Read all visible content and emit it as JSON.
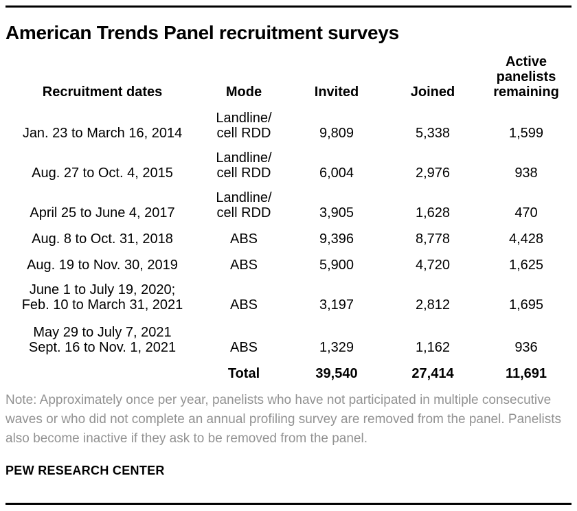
{
  "title": "American Trends Panel recruitment surveys",
  "table": {
    "headers": {
      "dates": "Recruitment dates",
      "mode": "Mode",
      "invited": "Invited",
      "joined": "Joined",
      "active_lines": [
        "Active",
        "panelists",
        "remaining"
      ]
    },
    "rows": [
      {
        "dates": [
          "Jan. 23 to March 16, 2014"
        ],
        "mode": [
          "Landline/",
          "cell RDD"
        ],
        "invited": "9,809",
        "joined": "5,338",
        "active": "1,599"
      },
      {
        "dates": [
          "Aug. 27 to Oct. 4, 2015"
        ],
        "mode": [
          "Landline/",
          "cell RDD"
        ],
        "invited": "6,004",
        "joined": "2,976",
        "active": "938"
      },
      {
        "dates": [
          "April 25 to June 4, 2017"
        ],
        "mode": [
          "Landline/",
          "cell RDD"
        ],
        "invited": "3,905",
        "joined": "1,628",
        "active": "470"
      },
      {
        "dates": [
          "Aug. 8 to Oct. 31, 2018"
        ],
        "mode": [
          "ABS"
        ],
        "invited": "9,396",
        "joined": "8,778",
        "active": "4,428"
      },
      {
        "dates": [
          "Aug. 19 to Nov. 30, 2019"
        ],
        "mode": [
          "ABS"
        ],
        "invited": "5,900",
        "joined": "4,720",
        "active": "1,625"
      },
      {
        "dates": [
          "June 1 to July 19, 2020;",
          "Feb. 10 to March 31, 2021"
        ],
        "mode": [
          "ABS"
        ],
        "invited": "3,197",
        "joined": "2,812",
        "active": "1,695"
      },
      {
        "dates": [
          "May 29 to July 7, 2021",
          "Sept. 16 to Nov. 1, 2021"
        ],
        "mode": [
          "ABS"
        ],
        "invited": "1,329",
        "joined": "1,162",
        "active": "936"
      }
    ],
    "total": {
      "label": "Total",
      "invited": "39,540",
      "joined": "27,414",
      "active": "11,691"
    }
  },
  "note": "Note: Approximately once per year, panelists who have not participated in multiple consecutive waves or who did not complete an annual profiling survey are removed from the panel. Panelists also become inactive if they ask to be removed from the panel.",
  "source": "PEW RESEARCH CENTER",
  "colors": {
    "text": "#000000",
    "note_gray": "#929292",
    "rule": "#000000"
  },
  "chart_data": {
    "type": "table",
    "title": "American Trends Panel recruitment surveys",
    "columns": [
      "Recruitment dates",
      "Mode",
      "Invited",
      "Joined",
      "Active panelists remaining"
    ],
    "rows": [
      [
        "Jan. 23 to March 16, 2014",
        "Landline/cell RDD",
        9809,
        5338,
        1599
      ],
      [
        "Aug. 27 to Oct. 4, 2015",
        "Landline/cell RDD",
        6004,
        2976,
        938
      ],
      [
        "April 25 to June 4, 2017",
        "Landline/cell RDD",
        3905,
        1628,
        470
      ],
      [
        "Aug. 8 to Oct. 31, 2018",
        "ABS",
        9396,
        8778,
        4428
      ],
      [
        "Aug. 19 to Nov. 30, 2019",
        "ABS",
        5900,
        4720,
        1625
      ],
      [
        "June 1 to July 19, 2020; Feb. 10 to March 31, 2021",
        "ABS",
        3197,
        2812,
        1695
      ],
      [
        "May 29 to July 7, 2021; Sept. 16 to Nov. 1, 2021",
        "ABS",
        1329,
        1162,
        936
      ]
    ],
    "total_row": [
      "Total",
      39540,
      27414,
      11691
    ],
    "note": "Note: Approximately once per year, panelists who have not participated in multiple consecutive waves or who did not complete an annual profiling survey are removed from the panel. Panelists also become inactive if they ask to be removed from the panel.",
    "source": "PEW RESEARCH CENTER"
  }
}
